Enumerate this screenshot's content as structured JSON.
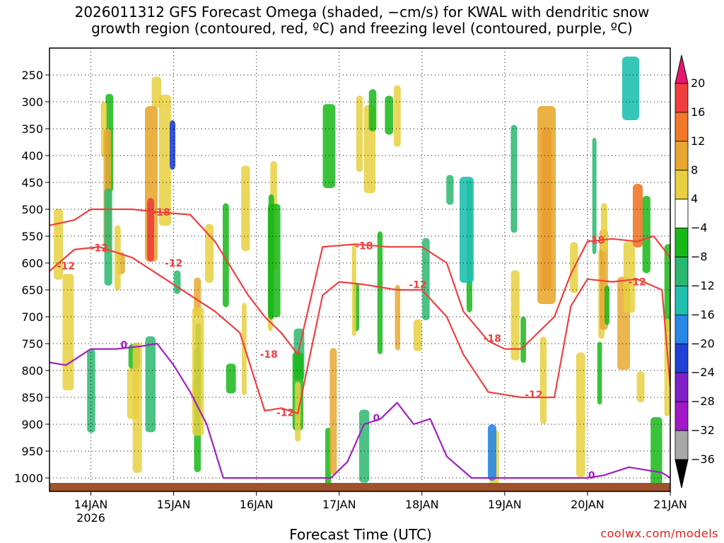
{
  "chart_data": {
    "type": "heatmap",
    "title": "2026011312 GFS Forecast Omega (shaded, −cm/s) for KWAL with dendritic snow",
    "subtitle": "growth region (contoured, red, ºC) and freezing level (contoured, purple, ºC)",
    "xlabel": "Forecast Time (UTC)",
    "ylabel": "",
    "x_ticks": [
      "14JAN",
      "15JAN",
      "16JAN",
      "17JAN",
      "18JAN",
      "19JAN",
      "20JAN",
      "21JAN"
    ],
    "x_tick_year": "2026",
    "x_range_days": [
      13.5,
      21.0
    ],
    "y_ticks": [
      250,
      300,
      350,
      400,
      450,
      500,
      550,
      600,
      650,
      700,
      750,
      800,
      850,
      900,
      950,
      1000
    ],
    "y_range_hpa": [
      200,
      1025
    ],
    "grid": true,
    "colorbar": {
      "labels": [
        "20",
        "16",
        "12",
        "8",
        "4",
        "−4",
        "−8",
        "−12",
        "−16",
        "−20",
        "−24",
        "−28",
        "−32",
        "−36"
      ],
      "colors": [
        "#e8186e",
        "#f03e3e",
        "#f07828",
        "#e8a830",
        "#e8d040",
        "#ffffff",
        "#18b818",
        "#2ab870",
        "#20c0b0",
        "#2888e8",
        "#2040d8",
        "#8020c8",
        "#a018c8",
        "#a8a8a8",
        "#000000"
      ]
    },
    "series": [
      {
        "name": "-18",
        "color": "#f04040",
        "x": [
          13.5,
          13.8,
          14.0,
          14.5,
          14.8,
          15.2,
          15.5,
          15.7,
          15.9,
          16.1,
          16.3,
          16.5,
          16.8,
          17.2,
          17.6,
          18.0,
          18.3,
          18.5,
          18.8,
          19.0,
          19.2,
          19.6,
          19.8,
          20.0,
          20.3,
          20.6,
          20.8,
          21.0
        ],
        "y": [
          530,
          520,
          500,
          500,
          505,
          510,
          560,
          610,
          660,
          700,
          730,
          770,
          570,
          565,
          570,
          570,
          600,
          690,
          745,
          760,
          760,
          700,
          620,
          560,
          555,
          560,
          550,
          590
        ]
      },
      {
        "name": "-12",
        "color": "#f04040",
        "x": [
          13.5,
          13.8,
          14.1,
          14.5,
          14.8,
          15.2,
          15.5,
          15.8,
          16.1,
          16.3,
          16.5,
          16.8,
          17.0,
          17.3,
          17.7,
          18.0,
          18.3,
          18.5,
          18.8,
          19.2,
          19.6,
          19.8,
          20.0,
          20.3,
          20.6,
          20.9,
          21.0
        ],
        "y": [
          615,
          575,
          570,
          590,
          620,
          660,
          690,
          730,
          875,
          870,
          880,
          660,
          635,
          640,
          650,
          650,
          700,
          770,
          840,
          850,
          850,
          680,
          630,
          635,
          630,
          650,
          830
        ]
      },
      {
        "name": "0",
        "color": "#a020c0",
        "x": [
          13.5,
          13.7,
          14.0,
          14.3,
          14.6,
          14.8,
          15.0,
          15.2,
          15.4,
          15.6,
          16.9,
          17.1,
          17.3,
          17.5,
          17.7,
          17.9,
          18.1,
          18.3,
          18.6,
          19.0,
          20.0,
          20.2,
          20.5,
          20.9,
          21.0
        ],
        "y": [
          785,
          790,
          760,
          760,
          755,
          750,
          790,
          840,
          900,
          1000,
          1000,
          970,
          900,
          890,
          860,
          900,
          890,
          960,
          1000,
          1000,
          1000,
          995,
          980,
          990,
          1000
        ]
      }
    ],
    "annotations": [
      {
        "text": "-18",
        "x": 14.85,
        "y": 505,
        "color": "#f04040"
      },
      {
        "text": "-12",
        "x": 14.1,
        "y": 572,
        "color": "#f04040"
      },
      {
        "text": "-12",
        "x": 13.7,
        "y": 605,
        "color": "#f04040"
      },
      {
        "text": "-12",
        "x": 15.0,
        "y": 600,
        "color": "#f04040"
      },
      {
        "text": "-18",
        "x": 16.15,
        "y": 770,
        "color": "#f04040"
      },
      {
        "text": "-12",
        "x": 16.35,
        "y": 878,
        "color": "#f04040"
      },
      {
        "text": "-18",
        "x": 17.3,
        "y": 568,
        "color": "#f04040"
      },
      {
        "text": "-12",
        "x": 17.95,
        "y": 640,
        "color": "#f04040"
      },
      {
        "text": "-18",
        "x": 18.85,
        "y": 740,
        "color": "#f04040"
      },
      {
        "text": "-12",
        "x": 19.35,
        "y": 845,
        "color": "#f04040"
      },
      {
        "text": "-18",
        "x": 20.1,
        "y": 557,
        "color": "#f04040"
      },
      {
        "text": "-12",
        "x": 20.6,
        "y": 635,
        "color": "#f04040"
      },
      {
        "text": "0",
        "x": 14.4,
        "y": 752,
        "color": "#a020c0"
      },
      {
        "text": "0",
        "x": 17.45,
        "y": 888,
        "color": "#a020c0"
      },
      {
        "text": "0",
        "x": 20.05,
        "y": 995,
        "color": "#a020c0"
      }
    ]
  },
  "credit": "coolwx.com/models"
}
